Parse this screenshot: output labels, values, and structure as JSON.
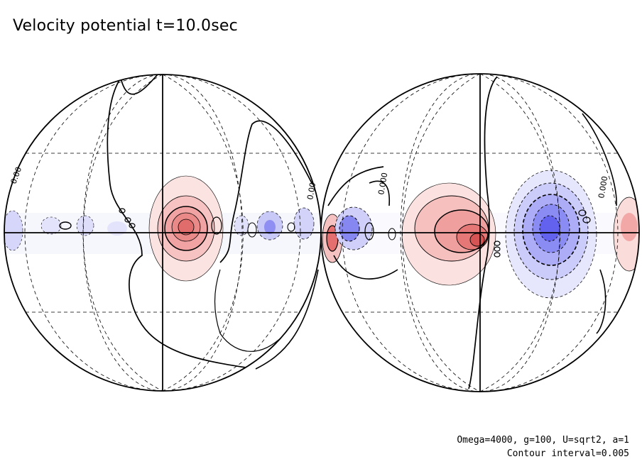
{
  "title": "Velocity potential t=10.0sec",
  "annotation": {
    "line1": "Omega=4000, g=100, U=sqrt2, a=1",
    "line2": "Contour interval=0.005"
  },
  "contour_labels": [
    "0.00",
    "0.00",
    "0.000",
    "0.000"
  ],
  "colors": {
    "positive": "#e8706e",
    "negative": "#6b6bef",
    "line": "#000000"
  }
}
